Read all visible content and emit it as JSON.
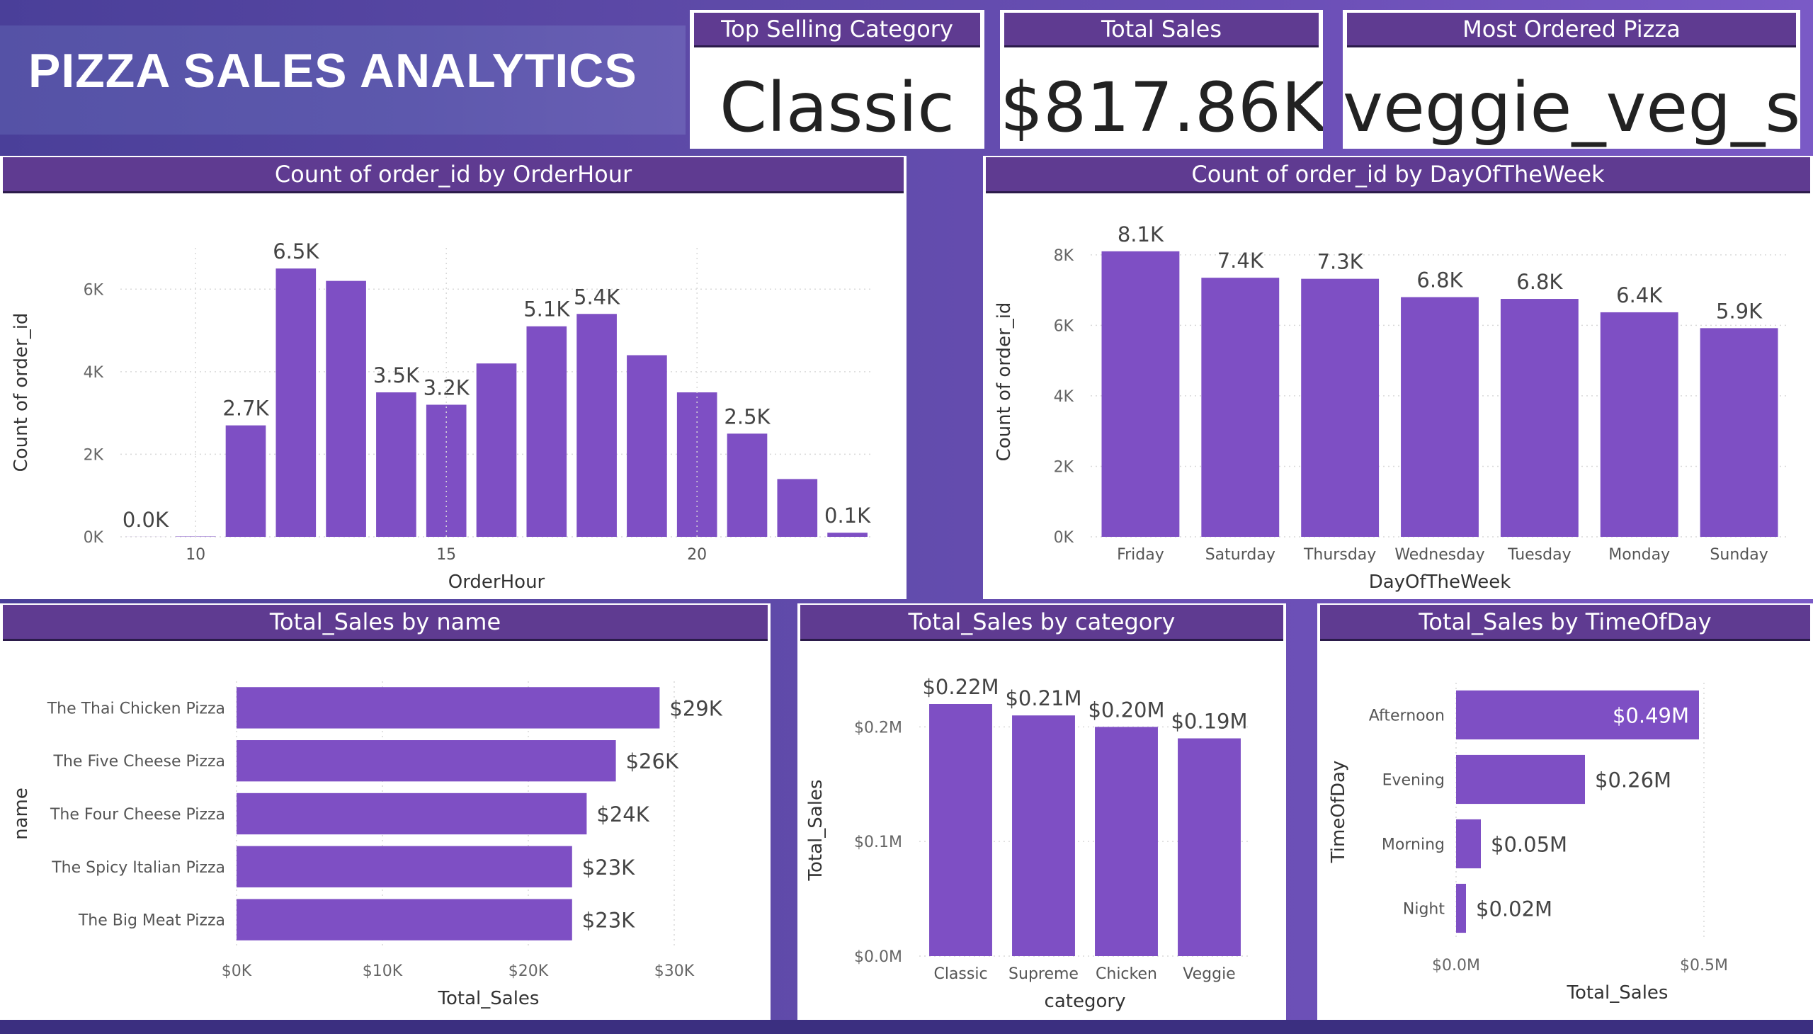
{
  "title": "PIZZA SALES ANALYTICS",
  "kpis": [
    {
      "label": "Top Selling Category",
      "value": "Classic"
    },
    {
      "label": "Total Sales",
      "value": "$817.86K"
    },
    {
      "label": "Most Ordered Pizza",
      "value": "veggie_veg_s"
    }
  ],
  "colors": {
    "bar": "#7e4fc4",
    "header": "#5f3b91",
    "grid": "#d9d9d9"
  },
  "chart_data": [
    {
      "id": "hour",
      "type": "bar",
      "title": "Count of order_id by OrderHour",
      "xlabel": "OrderHour",
      "ylabel": "Count of order_id",
      "x": [
        9,
        10,
        11,
        12,
        13,
        14,
        15,
        16,
        17,
        18,
        19,
        20,
        21,
        22,
        23
      ],
      "values": [
        1,
        8,
        2700,
        6500,
        6200,
        3500,
        3200,
        4200,
        5100,
        5400,
        4400,
        3500,
        2500,
        1400,
        100
      ],
      "data_labels": [
        "0.0K",
        null,
        "2.7K",
        "6.5K",
        null,
        "3.5K",
        "3.2K",
        null,
        "5.1K",
        "5.4K",
        null,
        null,
        "2.5K",
        null,
        "0.1K"
      ],
      "xticks": [
        "10",
        "15",
        "20"
      ],
      "yticks": [
        "0K",
        "2K",
        "4K",
        "6K"
      ],
      "ylim": [
        0,
        7000
      ],
      "grid": true
    },
    {
      "id": "day",
      "type": "bar",
      "title": "Count of order_id by DayOfTheWeek",
      "xlabel": "DayOfTheWeek",
      "ylabel": "Count of order_id",
      "categories": [
        "Friday",
        "Saturday",
        "Thursday",
        "Wednesday",
        "Tuesday",
        "Monday",
        "Sunday"
      ],
      "values": [
        8100,
        7350,
        7320,
        6800,
        6750,
        6370,
        5920
      ],
      "data_labels": [
        "8.1K",
        "7.4K",
        "7.3K",
        "6.8K",
        "6.8K",
        "6.4K",
        "5.9K"
      ],
      "yticks": [
        "0K",
        "2K",
        "4K",
        "6K",
        "8K"
      ],
      "ylim": [
        0,
        8800
      ],
      "grid": true
    },
    {
      "id": "name",
      "type": "bar",
      "orientation": "horizontal",
      "title": "Total_Sales by name",
      "xlabel": "Total_Sales",
      "ylabel": "name",
      "categories": [
        "The Thai Chicken Pizza",
        "The Five Cheese Pizza",
        "The Four Cheese Pizza",
        "The Spicy Italian Pizza",
        "The Big Meat Pizza"
      ],
      "values": [
        29000,
        26000,
        24000,
        23000,
        23000
      ],
      "data_labels": [
        "$29K",
        "$26K",
        "$24K",
        "$23K",
        "$23K"
      ],
      "xticks": [
        "$0K",
        "$10K",
        "$20K",
        "$30K"
      ],
      "xlim": [
        0,
        30000
      ],
      "grid": true
    },
    {
      "id": "category",
      "type": "bar",
      "title": "Total_Sales by category",
      "xlabel": "category",
      "ylabel": "Total_Sales",
      "categories": [
        "Classic",
        "Supreme",
        "Chicken",
        "Veggie"
      ],
      "values": [
        0.22,
        0.21,
        0.2,
        0.19
      ],
      "data_labels": [
        "$0.22M",
        "$0.21M",
        "$0.20M",
        "$0.19M"
      ],
      "yticks": [
        "$0.0M",
        "$0.1M",
        "$0.2M"
      ],
      "ylim": [
        0,
        0.22
      ],
      "grid": true
    },
    {
      "id": "timeofday",
      "type": "bar",
      "orientation": "horizontal",
      "title": "Total_Sales by TimeOfDay",
      "xlabel": "Total_Sales",
      "ylabel": "TimeOfDay",
      "categories": [
        "Afternoon",
        "Evening",
        "Morning",
        "Night"
      ],
      "values": [
        0.49,
        0.26,
        0.05,
        0.02
      ],
      "data_labels": [
        "$0.49M",
        "$0.26M",
        "$0.05M",
        "$0.02M"
      ],
      "xticks": [
        "$0.0M",
        "$0.5M"
      ],
      "xlim": [
        0,
        0.5
      ],
      "grid": true
    }
  ]
}
